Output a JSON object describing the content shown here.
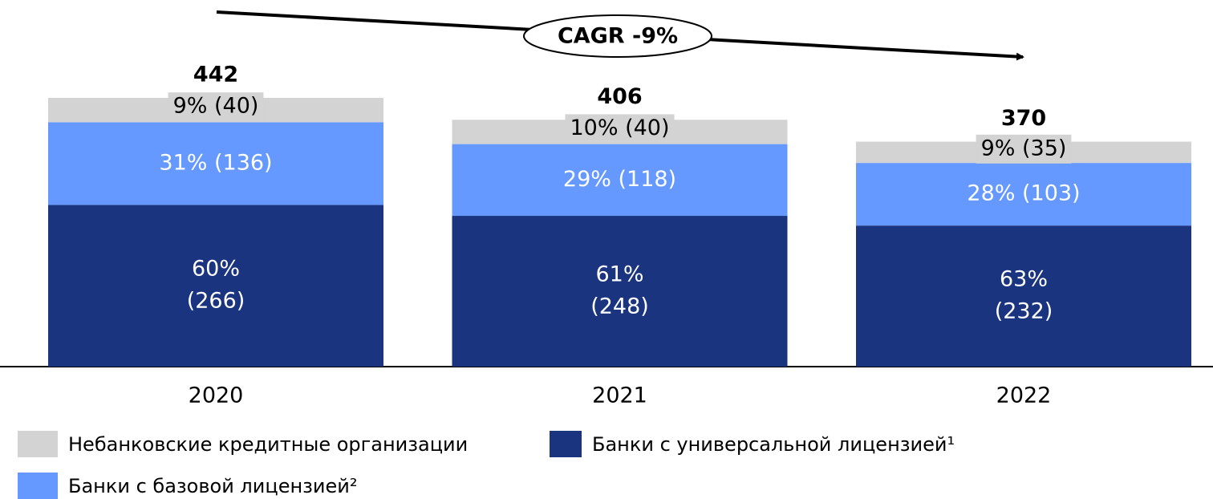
{
  "chart_data": {
    "type": "stacked_bar",
    "annotation": "CAGR -9%",
    "categories": [
      "2020",
      "2021",
      "2022"
    ],
    "series": [
      {
        "name": "Банки с универсальной лицензией¹",
        "color": "#1b3480",
        "values": [
          266,
          248,
          232
        ],
        "value_labels": [
          [
            "60%",
            "(266)"
          ],
          [
            "61%",
            "(248)"
          ],
          [
            "63%",
            "(232)"
          ]
        ]
      },
      {
        "name": "Банки с базовой лицензией²",
        "color": "#6699ff",
        "values": [
          136,
          118,
          103
        ],
        "value_labels": [
          "31% (136)",
          "29% (118)",
          "28% (103)"
        ]
      },
      {
        "name": "Небанковские кредитные организации",
        "color": "#d3d3d3",
        "values": [
          40,
          40,
          35
        ],
        "value_labels": [
          "9% (40)",
          "10% (40)",
          "9% (35)"
        ]
      }
    ],
    "totals": [
      442,
      406,
      370
    ]
  }
}
